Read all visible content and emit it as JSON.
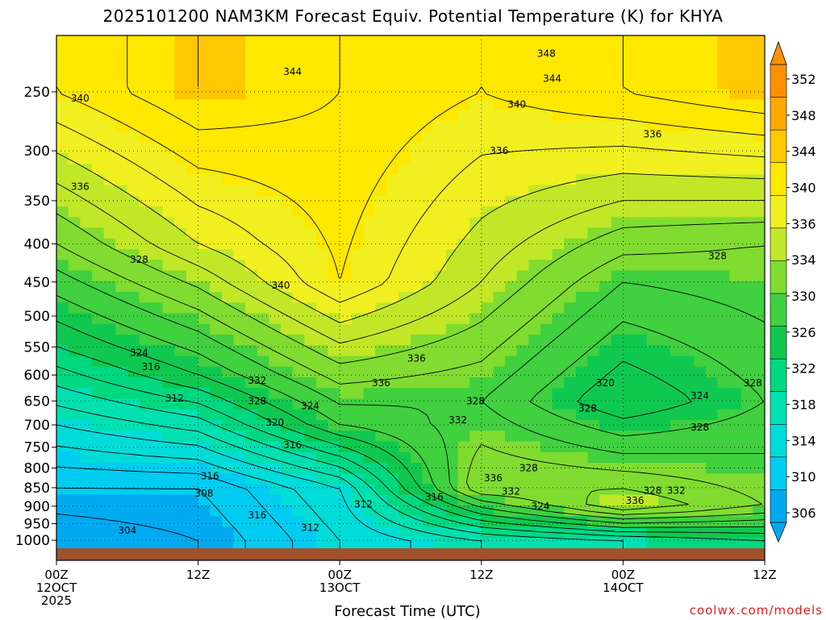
{
  "title": "2025101200 NAM3KM Forecast Equiv. Potential Temperature (K) for KHYA",
  "credit": "coolwx.com/models",
  "colors": {
    "scale": [
      "#00aaf0",
      "#00ccf2",
      "#00dcd8",
      "#00e0b0",
      "#00d880",
      "#10c850",
      "#40d040",
      "#80dc30",
      "#c0e828",
      "#f0f020",
      "#ffe800",
      "#ffc800",
      "#ffa800",
      "#ff9000"
    ],
    "ground": "#a0522d",
    "contour": "#000000"
  },
  "chart_data": {
    "type": "heatmap",
    "title": "2025101200 NAM3KM Forecast Equiv. Potential Temperature (K) for KHYA",
    "xlabel": "Forecast Time (UTC)",
    "ylabel": "",
    "x_hours": [
      0,
      12,
      24,
      36,
      48,
      60
    ],
    "xticks": [
      {
        "hour": 0,
        "lines": [
          "00Z",
          "12OCT",
          "2025"
        ]
      },
      {
        "hour": 12,
        "lines": [
          "12Z"
        ]
      },
      {
        "hour": 24,
        "lines": [
          "00Z",
          "13OCT"
        ]
      },
      {
        "hour": 36,
        "lines": [
          "12Z"
        ]
      },
      {
        "hour": 48,
        "lines": [
          "00Z",
          "14OCT"
        ]
      },
      {
        "hour": 60,
        "lines": [
          "12Z"
        ]
      }
    ],
    "y_pressure_hpa": [
      "250",
      "300",
      "350",
      "400",
      "450",
      "500",
      "550",
      "600",
      "650",
      "700",
      "750",
      "800",
      "850",
      "900",
      "950",
      "1000"
    ],
    "ylim_hpa": [
      1025,
      210
    ],
    "xlim_hours": [
      0,
      60
    ],
    "colorbar": {
      "labels": [
        "352",
        "348",
        "344",
        "340",
        "336",
        "334",
        "330",
        "326",
        "322",
        "318",
        "314",
        "310",
        "306"
      ],
      "range_k": [
        304,
        354
      ]
    },
    "contour_interval_k": 2,
    "grid": true,
    "temperature_field_k": {
      "note": "approximate theta-e at (hour, hPa)",
      "values": [
        {
          "hour": 0,
          "hpa": 1000,
          "value": 304
        },
        {
          "hour": 0,
          "hpa": 850,
          "value": 308
        },
        {
          "hour": 0,
          "hpa": 700,
          "value": 314
        },
        {
          "hour": 0,
          "hpa": 550,
          "value": 322
        },
        {
          "hour": 0,
          "hpa": 400,
          "value": 330
        },
        {
          "hour": 0,
          "hpa": 250,
          "value": 340
        },
        {
          "hour": 12,
          "hpa": 1000,
          "value": 306
        },
        {
          "hour": 12,
          "hpa": 850,
          "value": 308
        },
        {
          "hour": 12,
          "hpa": 600,
          "value": 324
        },
        {
          "hour": 12,
          "hpa": 400,
          "value": 336
        },
        {
          "hour": 12,
          "hpa": 250,
          "value": 344
        },
        {
          "hour": 24,
          "hpa": 1000,
          "value": 312
        },
        {
          "hour": 24,
          "hpa": 850,
          "value": 314
        },
        {
          "hour": 24,
          "hpa": 700,
          "value": 326
        },
        {
          "hour": 24,
          "hpa": 450,
          "value": 340
        },
        {
          "hour": 24,
          "hpa": 250,
          "value": 342
        },
        {
          "hour": 36,
          "hpa": 1000,
          "value": 316
        },
        {
          "hour": 36,
          "hpa": 850,
          "value": 332
        },
        {
          "hour": 36,
          "hpa": 650,
          "value": 328
        },
        {
          "hour": 36,
          "hpa": 450,
          "value": 334
        },
        {
          "hour": 36,
          "hpa": 250,
          "value": 340
        },
        {
          "hour": 48,
          "hpa": 1000,
          "value": 318
        },
        {
          "hour": 48,
          "hpa": 900,
          "value": 334
        },
        {
          "hour": 48,
          "hpa": 650,
          "value": 322
        },
        {
          "hour": 48,
          "hpa": 450,
          "value": 328
        },
        {
          "hour": 48,
          "hpa": 250,
          "value": 342
        },
        {
          "hour": 60,
          "hpa": 1000,
          "value": 320
        },
        {
          "hour": 60,
          "hpa": 900,
          "value": 330
        },
        {
          "hour": 60,
          "hpa": 650,
          "value": 326
        },
        {
          "hour": 60,
          "hpa": 400,
          "value": 330
        },
        {
          "hour": 60,
          "hpa": 250,
          "value": 344
        }
      ]
    },
    "contour_labels": [
      {
        "text": "348",
        "hour": 41.5,
        "hpa": 222
      },
      {
        "text": "344",
        "hour": 20,
        "hpa": 235
      },
      {
        "text": "344",
        "hour": 42,
        "hpa": 240
      },
      {
        "text": "340",
        "hour": 2,
        "hpa": 255
      },
      {
        "text": "340",
        "hour": 39,
        "hpa": 260
      },
      {
        "text": "336",
        "hour": 50.5,
        "hpa": 285
      },
      {
        "text": "336",
        "hour": 37.5,
        "hpa": 300
      },
      {
        "text": "336",
        "hour": 2,
        "hpa": 335
      },
      {
        "text": "328",
        "hour": 7,
        "hpa": 420
      },
      {
        "text": "328",
        "hour": 56,
        "hpa": 415
      },
      {
        "text": "340",
        "hour": 19,
        "hpa": 455
      },
      {
        "text": "336",
        "hour": 30.5,
        "hpa": 570
      },
      {
        "text": "324",
        "hour": 7,
        "hpa": 560
      },
      {
        "text": "316",
        "hour": 8,
        "hpa": 585
      },
      {
        "text": "332",
        "hour": 17,
        "hpa": 610
      },
      {
        "text": "336",
        "hour": 27.5,
        "hpa": 615
      },
      {
        "text": "320",
        "hour": 46.5,
        "hpa": 615
      },
      {
        "text": "312",
        "hour": 10,
        "hpa": 645
      },
      {
        "text": "328",
        "hour": 17,
        "hpa": 650
      },
      {
        "text": "324",
        "hour": 21.5,
        "hpa": 660
      },
      {
        "text": "328",
        "hour": 35.5,
        "hpa": 650
      },
      {
        "text": "324",
        "hour": 54.5,
        "hpa": 640
      },
      {
        "text": "328",
        "hour": 59,
        "hpa": 615
      },
      {
        "text": "320",
        "hour": 18.5,
        "hpa": 695
      },
      {
        "text": "332",
        "hour": 34,
        "hpa": 690
      },
      {
        "text": "328",
        "hour": 45,
        "hpa": 665
      },
      {
        "text": "328",
        "hour": 54.5,
        "hpa": 705
      },
      {
        "text": "316",
        "hour": 20,
        "hpa": 745
      },
      {
        "text": "316",
        "hour": 13,
        "hpa": 820
      },
      {
        "text": "328",
        "hour": 40,
        "hpa": 800
      },
      {
        "text": "336",
        "hour": 37,
        "hpa": 825
      },
      {
        "text": "332",
        "hour": 38.5,
        "hpa": 860
      },
      {
        "text": "316",
        "hour": 32,
        "hpa": 875
      },
      {
        "text": "308",
        "hour": 12.5,
        "hpa": 865
      },
      {
        "text": "328",
        "hour": 50.5,
        "hpa": 858
      },
      {
        "text": "332",
        "hour": 52.5,
        "hpa": 858
      },
      {
        "text": "336",
        "hour": 49,
        "hpa": 885
      },
      {
        "text": "312",
        "hour": 26,
        "hpa": 895
      },
      {
        "text": "324",
        "hour": 41,
        "hpa": 900
      },
      {
        "text": "316",
        "hour": 17,
        "hpa": 925
      },
      {
        "text": "312",
        "hour": 21.5,
        "hpa": 962
      },
      {
        "text": "304",
        "hour": 6,
        "hpa": 970
      }
    ]
  }
}
